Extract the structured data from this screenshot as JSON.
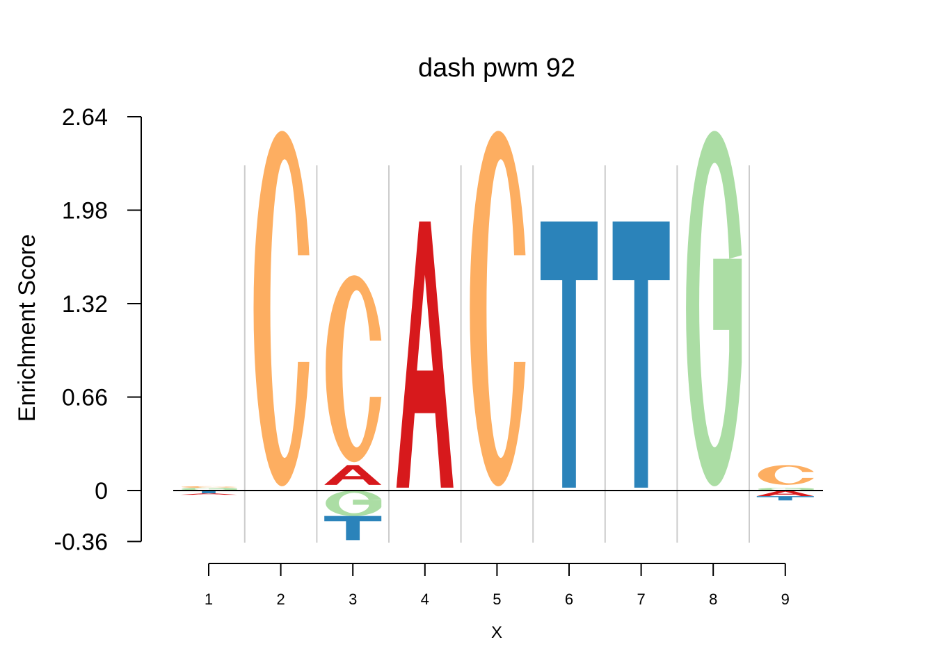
{
  "chart_data": {
    "type": "sequence-logo",
    "title": "dash pwm 92",
    "xlabel": "X",
    "ylabel": "Enrichment Score",
    "ylim": [
      -0.36,
      2.64
    ],
    "yticks": [
      "2.64",
      "1.98",
      "1.32",
      "0.66",
      "0",
      "-0.36"
    ],
    "positions": [
      "1",
      "2",
      "3",
      "4",
      "5",
      "6",
      "7",
      "8",
      "9"
    ],
    "colors": {
      "A": "#d7191c",
      "C": "#fdae61",
      "G": "#abdda4",
      "T": "#2b83ba"
    },
    "columns": [
      {
        "position": 1,
        "letters": [
          {
            "base": "G",
            "from": 0.0,
            "to": 0.02
          },
          {
            "base": "C",
            "from": 0.02,
            "to": 0.03
          },
          {
            "base": "T",
            "from": -0.02,
            "to": 0.0
          },
          {
            "base": "A",
            "from": -0.03,
            "to": -0.02
          }
        ]
      },
      {
        "position": 2,
        "letters": [
          {
            "base": "C",
            "from": 0.03,
            "to": 2.54
          }
        ]
      },
      {
        "position": 3,
        "letters": [
          {
            "base": "A",
            "from": 0.04,
            "to": 0.18
          },
          {
            "base": "C",
            "from": 0.2,
            "to": 1.52
          },
          {
            "base": "G",
            "from": -0.18,
            "to": 0.0
          },
          {
            "base": "T",
            "from": -0.35,
            "to": -0.18
          }
        ]
      },
      {
        "position": 4,
        "letters": [
          {
            "base": "A",
            "from": 0.02,
            "to": 1.9
          }
        ]
      },
      {
        "position": 5,
        "letters": [
          {
            "base": "C",
            "from": 0.03,
            "to": 2.54
          }
        ]
      },
      {
        "position": 6,
        "letters": [
          {
            "base": "T",
            "from": 0.02,
            "to": 1.9
          }
        ]
      },
      {
        "position": 7,
        "letters": [
          {
            "base": "T",
            "from": 0.02,
            "to": 1.9
          }
        ]
      },
      {
        "position": 8,
        "letters": [
          {
            "base": "G",
            "from": 0.03,
            "to": 2.54
          }
        ]
      },
      {
        "position": 9,
        "letters": [
          {
            "base": "G",
            "from": 0.0,
            "to": 0.02
          },
          {
            "base": "C",
            "from": 0.04,
            "to": 0.18
          },
          {
            "base": "A",
            "from": -0.04,
            "to": 0.0
          },
          {
            "base": "T",
            "from": -0.07,
            "to": -0.04
          }
        ]
      }
    ]
  }
}
